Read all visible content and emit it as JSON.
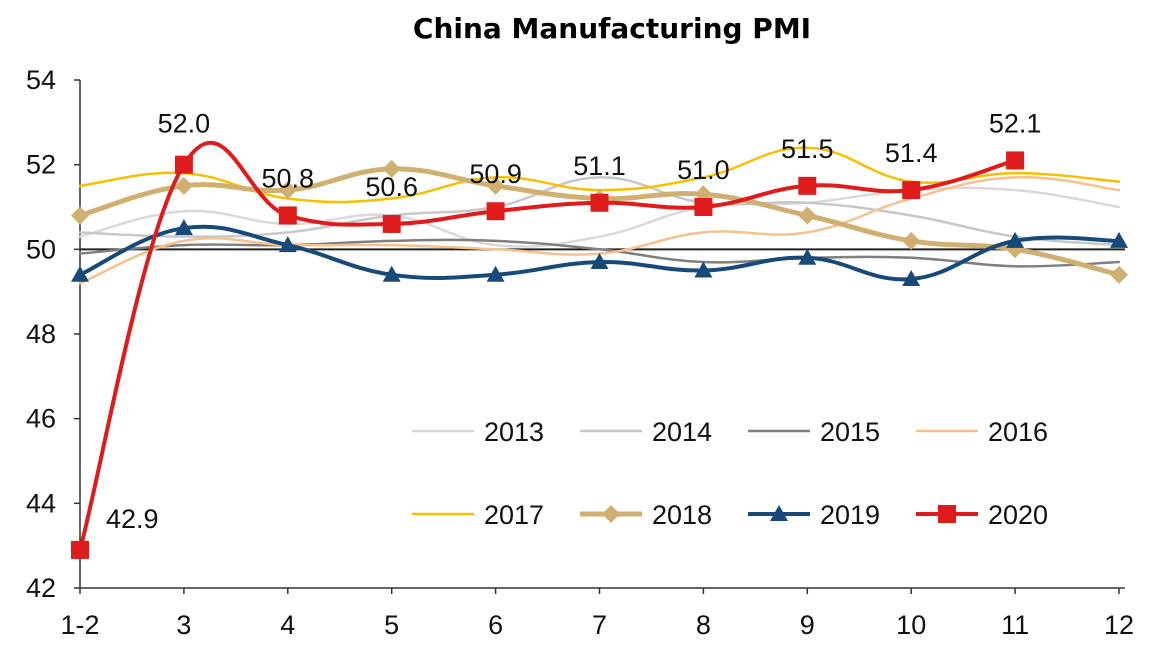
{
  "chart_data": {
    "type": "line",
    "title": "China Manufacturing PMI",
    "xlabel": "",
    "ylabel": "",
    "categories": [
      "1-2",
      "3",
      "4",
      "5",
      "6",
      "7",
      "8",
      "9",
      "10",
      "11",
      "12"
    ],
    "ylim": [
      42,
      54
    ],
    "yticks": [
      "42",
      "44",
      "46",
      "48",
      "50",
      "52",
      "54"
    ],
    "grid": false,
    "reference_line": 50,
    "legend_position": "lower-right",
    "series": [
      {
        "name": "2013",
        "color": "#d9d9d9",
        "width": 2.5,
        "marker": "none",
        "values": [
          50.3,
          50.9,
          50.6,
          50.8,
          50.1,
          50.3,
          51.0,
          51.1,
          51.4,
          51.4,
          51.0
        ]
      },
      {
        "name": "2014",
        "color": "#c8c8c8",
        "width": 2.5,
        "marker": "none",
        "values": [
          50.4,
          50.3,
          50.4,
          50.8,
          51.0,
          51.7,
          51.1,
          51.1,
          50.8,
          50.3,
          50.1
        ]
      },
      {
        "name": "2015",
        "color": "#7f7f7f",
        "width": 2.5,
        "marker": "none",
        "values": [
          49.9,
          50.1,
          50.1,
          50.2,
          50.2,
          50.0,
          49.7,
          49.8,
          49.8,
          49.6,
          49.7
        ]
      },
      {
        "name": "2016",
        "color": "#f5c28f",
        "width": 2.5,
        "marker": "none",
        "values": [
          49.2,
          50.2,
          50.1,
          50.1,
          50.0,
          49.9,
          50.4,
          50.4,
          51.2,
          51.7,
          51.4
        ]
      },
      {
        "name": "2017",
        "color": "#f5c000",
        "width": 2.5,
        "marker": "none",
        "values": [
          51.5,
          51.8,
          51.2,
          51.2,
          51.7,
          51.4,
          51.7,
          52.4,
          51.6,
          51.8,
          51.6
        ]
      },
      {
        "name": "2018",
        "color": "#cfb070",
        "width": 5,
        "marker": "diamond",
        "values": [
          50.8,
          51.5,
          51.4,
          51.9,
          51.5,
          51.2,
          51.3,
          50.8,
          50.2,
          50.0,
          49.4
        ]
      },
      {
        "name": "2019",
        "color": "#174a78",
        "width": 4,
        "marker": "triangle",
        "values": [
          49.4,
          50.5,
          50.1,
          49.4,
          49.4,
          49.7,
          49.5,
          49.8,
          49.3,
          50.2,
          50.2
        ]
      },
      {
        "name": "2020",
        "color": "#e01b1b",
        "width": 4,
        "marker": "square",
        "values": [
          42.9,
          52.0,
          50.8,
          50.6,
          50.9,
          51.1,
          51.0,
          51.5,
          51.4,
          52.1,
          null
        ]
      }
    ],
    "data_labels": [
      {
        "index": 0,
        "text": "42.9"
      },
      {
        "index": 1,
        "text": "52.0"
      },
      {
        "index": 2,
        "text": "50.8"
      },
      {
        "index": 3,
        "text": "50.6"
      },
      {
        "index": 4,
        "text": "50.9"
      },
      {
        "index": 5,
        "text": "51.1"
      },
      {
        "index": 6,
        "text": "51.0"
      },
      {
        "index": 7,
        "text": "51.5"
      },
      {
        "index": 8,
        "text": "51.4"
      },
      {
        "index": 9,
        "text": "52.1"
      }
    ]
  }
}
